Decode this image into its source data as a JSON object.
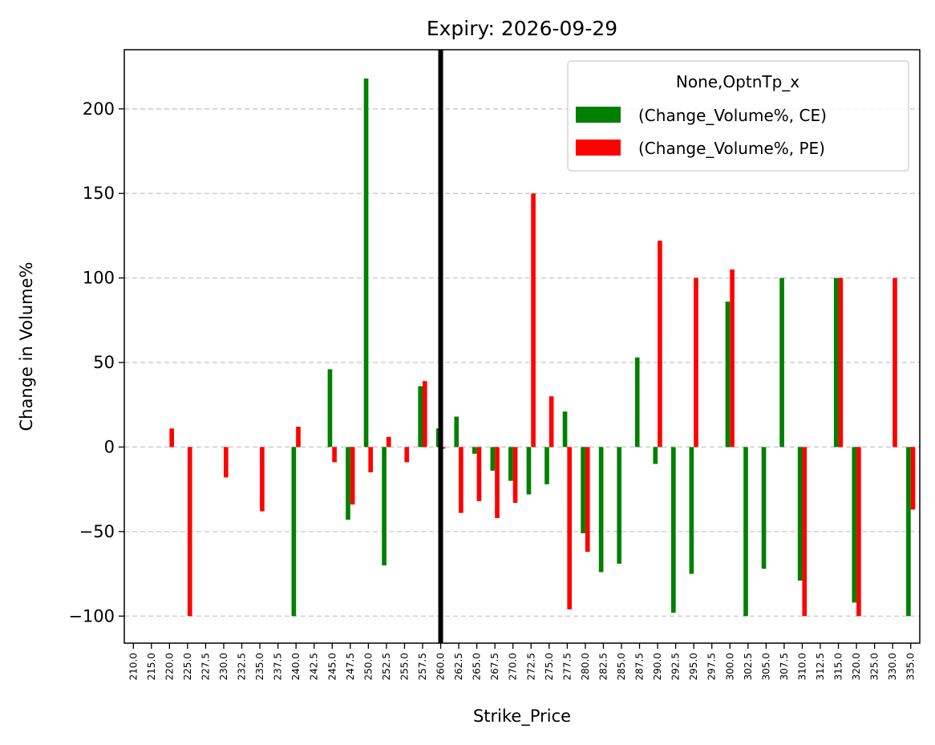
{
  "chart_data": {
    "type": "bar",
    "title": "Expiry: 2026-09-29",
    "xlabel": "Strike_Price",
    "ylabel": "Change in Volume%",
    "ylim": [
      -116,
      235
    ],
    "yticks": [
      -100,
      -50,
      0,
      50,
      100,
      150,
      200
    ],
    "ytick_labels": [
      "−100",
      "−50",
      "0",
      "50",
      "100",
      "150",
      "200"
    ],
    "grid": "horizontal dashed",
    "legend_title": "None,OptnTp_x",
    "legend_position": "top-right",
    "reference_line": {
      "category": "260.0",
      "color": "#000000"
    },
    "categories": [
      "210.0",
      "215.0",
      "220.0",
      "225.0",
      "227.5",
      "230.0",
      "232.5",
      "235.0",
      "237.5",
      "240.0",
      "242.5",
      "245.0",
      "247.5",
      "250.0",
      "252.5",
      "255.0",
      "257.5",
      "260.0",
      "262.5",
      "265.0",
      "267.5",
      "270.0",
      "272.5",
      "275.0",
      "277.5",
      "280.0",
      "282.5",
      "285.0",
      "287.5",
      "290.0",
      "292.5",
      "295.0",
      "297.5",
      "300.0",
      "302.5",
      "305.0",
      "307.5",
      "310.0",
      "312.5",
      "315.0",
      "320.0",
      "325.0",
      "330.0",
      "335.0"
    ],
    "series": [
      {
        "name": "(Change_Volume%, CE)",
        "color": "#008000",
        "values": [
          0,
          0,
          0,
          0,
          0,
          0,
          0,
          0,
          0,
          -100,
          0,
          46,
          -43,
          218,
          -70,
          0,
          36,
          11,
          18,
          -4,
          -14,
          -20,
          -28,
          -22,
          21,
          -51,
          -74,
          -69,
          53,
          -10,
          -98,
          -75,
          0,
          86,
          -100,
          -72,
          100,
          -79,
          0,
          100,
          -92,
          0,
          0,
          -100
        ]
      },
      {
        "name": "(Change_Volume%, PE)",
        "color": "#ff0000",
        "values": [
          0,
          0,
          11,
          -100,
          0,
          -18,
          0,
          -38,
          0,
          12,
          0,
          -9,
          -34,
          -15,
          6,
          -9,
          39,
          -1,
          -39,
          -32,
          -42,
          -33,
          150,
          30,
          -96,
          -62,
          0,
          0,
          0,
          122,
          0,
          100,
          0,
          105,
          0,
          0,
          0,
          -100,
          0,
          100,
          -100,
          0,
          100,
          -37
        ]
      }
    ]
  }
}
